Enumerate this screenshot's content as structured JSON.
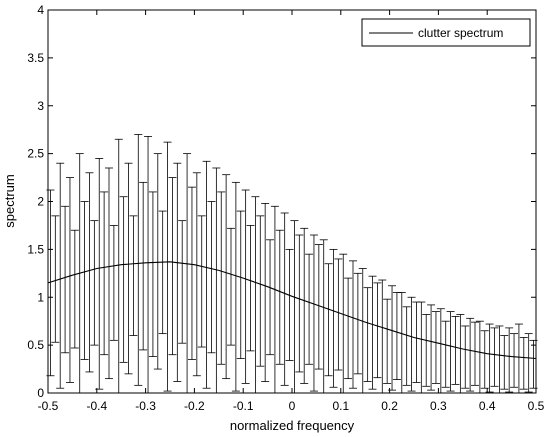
{
  "chart_data": {
    "type": "line",
    "title": "",
    "xlabel": "normalized frequency",
    "ylabel": "spectrum",
    "xlim": [
      -0.5,
      0.5
    ],
    "ylim": [
      0,
      4
    ],
    "xticks": [
      -0.5,
      -0.4,
      -0.3,
      -0.2,
      -0.1,
      0,
      0.1,
      0.2,
      0.3,
      0.4,
      0.5
    ],
    "xtick_labels": [
      "-0.5",
      "-0.4",
      "-0.3",
      "-0.2",
      "-0.1",
      "0",
      "0.1",
      "0.2",
      "0.3",
      "0.4",
      "0.5"
    ],
    "yticks": [
      0,
      0.5,
      1,
      1.5,
      2,
      2.5,
      3,
      3.5,
      4
    ],
    "ytick_labels": [
      "0",
      "0.5",
      "1",
      "1.5",
      "2",
      "2.5",
      "3",
      "3.5",
      "4"
    ],
    "grid": false,
    "legend": {
      "position": "top-right",
      "entries": [
        "clutter spectrum"
      ]
    },
    "series": [
      {
        "name": "clutter spectrum",
        "color": "#000000",
        "x": [
          -0.5,
          -0.45,
          -0.4,
          -0.35,
          -0.3,
          -0.25,
          -0.2,
          -0.15,
          -0.1,
          -0.05,
          0,
          0.05,
          0.1,
          0.15,
          0.2,
          0.25,
          0.3,
          0.35,
          0.4,
          0.45,
          0.5
        ],
        "y": [
          1.15,
          1.23,
          1.3,
          1.34,
          1.36,
          1.37,
          1.34,
          1.28,
          1.2,
          1.11,
          1.01,
          0.92,
          0.83,
          0.74,
          0.66,
          0.58,
          0.52,
          0.46,
          0.41,
          0.38,
          0.36
        ]
      }
    ],
    "error_bars": {
      "color": "#000000",
      "x": [
        -0.495,
        -0.485,
        -0.475,
        -0.465,
        -0.455,
        -0.445,
        -0.435,
        -0.425,
        -0.415,
        -0.405,
        -0.395,
        -0.385,
        -0.375,
        -0.365,
        -0.355,
        -0.345,
        -0.335,
        -0.325,
        -0.315,
        -0.305,
        -0.295,
        -0.285,
        -0.275,
        -0.265,
        -0.255,
        -0.245,
        -0.235,
        -0.225,
        -0.215,
        -0.205,
        -0.195,
        -0.185,
        -0.175,
        -0.165,
        -0.155,
        -0.145,
        -0.135,
        -0.125,
        -0.115,
        -0.105,
        -0.095,
        -0.085,
        -0.075,
        -0.065,
        -0.055,
        -0.045,
        -0.035,
        -0.025,
        -0.015,
        -0.005,
        0.005,
        0.015,
        0.025,
        0.035,
        0.045,
        0.055,
        0.065,
        0.075,
        0.085,
        0.095,
        0.105,
        0.115,
        0.125,
        0.135,
        0.145,
        0.155,
        0.165,
        0.175,
        0.185,
        0.195,
        0.205,
        0.215,
        0.225,
        0.235,
        0.245,
        0.255,
        0.265,
        0.275,
        0.285,
        0.295,
        0.305,
        0.315,
        0.325,
        0.335,
        0.345,
        0.355,
        0.365,
        0.375,
        0.385,
        0.395,
        0.405,
        0.415,
        0.425,
        0.435,
        0.445,
        0.455,
        0.465,
        0.475,
        0.485,
        0.495
      ],
      "lower": [
        0.18,
        0.53,
        0.05,
        0.42,
        0.11,
        0.47,
        0.0,
        0.35,
        0.22,
        0.5,
        0.04,
        0.4,
        0.15,
        0.55,
        0.0,
        0.32,
        0.2,
        0.6,
        0.08,
        0.45,
        0.0,
        0.38,
        0.25,
        0.62,
        0.02,
        0.4,
        0.12,
        0.52,
        0.0,
        0.35,
        0.18,
        0.48,
        0.05,
        0.42,
        0.0,
        0.3,
        0.15,
        0.5,
        0.02,
        0.36,
        0.1,
        0.44,
        0.0,
        0.28,
        0.12,
        0.4,
        0.0,
        0.3,
        0.08,
        0.34,
        0.0,
        0.22,
        0.1,
        0.3,
        0.02,
        0.25,
        0.0,
        0.18,
        0.06,
        0.24,
        0.0,
        0.15,
        0.05,
        0.2,
        0.0,
        0.12,
        0.04,
        0.16,
        0.0,
        0.1,
        0.03,
        0.14,
        0.0,
        0.08,
        0.02,
        0.11,
        0.0,
        0.07,
        0.03,
        0.1,
        0.0,
        0.06,
        0.02,
        0.09,
        0.0,
        0.05,
        0.02,
        0.08,
        0.0,
        0.05,
        0.01,
        0.07,
        0.0,
        0.04,
        0.01,
        0.06,
        0.0,
        0.04,
        0.01,
        0.05
      ],
      "upper": [
        2.12,
        1.85,
        2.4,
        1.95,
        2.25,
        1.7,
        2.5,
        2.0,
        2.3,
        1.8,
        2.45,
        2.1,
        2.35,
        1.75,
        2.65,
        2.05,
        2.4,
        1.85,
        2.7,
        2.2,
        2.68,
        2.1,
        2.5,
        1.9,
        2.62,
        2.25,
        2.4,
        1.8,
        2.5,
        2.15,
        2.3,
        1.85,
        2.42,
        2.0,
        2.35,
        2.1,
        2.28,
        1.72,
        2.2,
        1.9,
        2.12,
        1.75,
        2.05,
        1.85,
        1.98,
        1.6,
        1.95,
        1.7,
        1.88,
        1.5,
        1.8,
        1.65,
        1.72,
        1.45,
        1.65,
        1.55,
        1.6,
        1.35,
        1.5,
        1.4,
        1.45,
        1.2,
        1.38,
        1.25,
        1.3,
        1.1,
        1.22,
        1.15,
        1.18,
        0.98,
        1.12,
        1.05,
        1.05,
        0.9,
        1.0,
        0.95,
        0.95,
        0.82,
        0.92,
        0.85,
        0.88,
        0.75,
        0.85,
        0.8,
        0.82,
        0.7,
        0.78,
        0.74,
        0.75,
        0.65,
        0.72,
        0.68,
        0.7,
        0.6,
        0.68,
        0.62,
        0.72,
        0.58,
        0.62,
        0.55
      ]
    }
  }
}
